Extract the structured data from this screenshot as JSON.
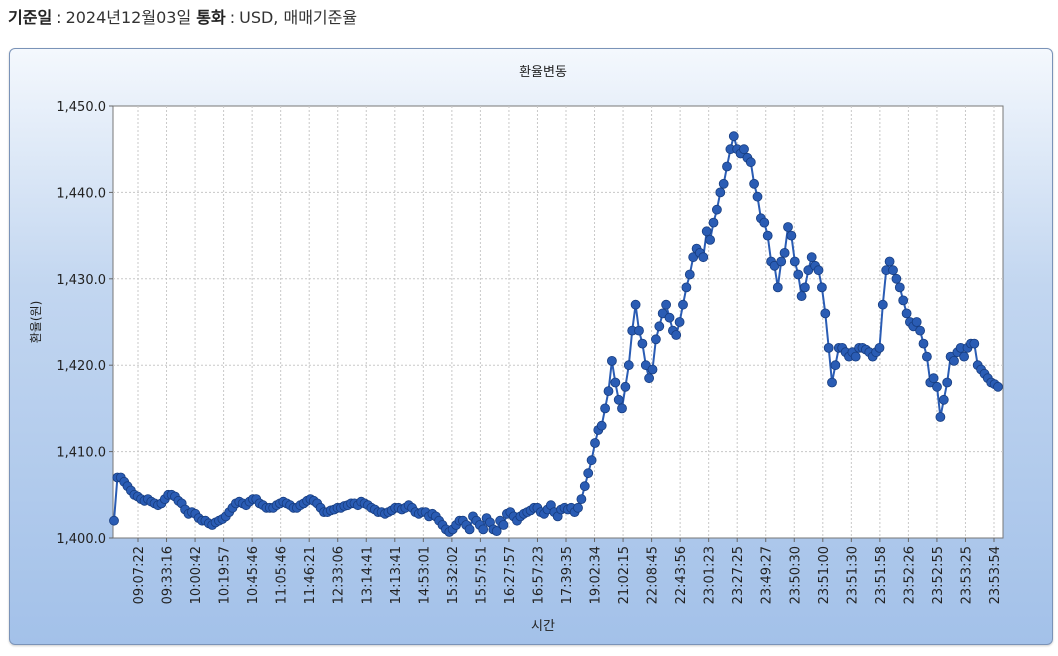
{
  "info": {
    "date_key": "기준일",
    "date_value": "2024년12월03일",
    "currency_key": "통화",
    "currency_value": "USD, 매매기준율"
  },
  "chart_data": {
    "type": "line",
    "title": "환율변동",
    "xlabel": "시간",
    "ylabel": "환율(원)",
    "ylim": [
      1400.0,
      1450.0
    ],
    "yticks": [
      "1,400.0",
      "1,410.0",
      "1,420.0",
      "1,430.0",
      "1,440.0",
      "1,450.0"
    ],
    "xticks": [
      "09:07:22",
      "09:33:16",
      "10:00:42",
      "10:19:57",
      "10:45:46",
      "11:05:46",
      "11:46:21",
      "12:33:06",
      "13:14:41",
      "14:13:41",
      "14:53:01",
      "15:32:02",
      "15:57:51",
      "16:27:57",
      "16:57:23",
      "17:39:35",
      "19:02:34",
      "21:02:15",
      "22:08:45",
      "22:43:56",
      "23:01:23",
      "23:27:25",
      "23:49:27",
      "23:50:30",
      "23:51:00",
      "23:51:30",
      "23:51:58",
      "23:52:26",
      "23:52:55",
      "23:53:25",
      "23:53:54"
    ],
    "grid": true,
    "series_color": "#2a5cb4",
    "series": [
      {
        "values": [
          1402.0,
          1407.0,
          1407.0,
          1406.5,
          1406.0,
          1405.5,
          1405.0,
          1404.8,
          1404.5,
          1404.3,
          1404.5,
          1404.2,
          1404.0,
          1403.8,
          1404.0,
          1404.5,
          1405.0,
          1405.0,
          1404.8,
          1404.3,
          1404.0,
          1403.3,
          1402.8,
          1403.0,
          1402.8,
          1402.3,
          1402.0,
          1402.0,
          1401.7,
          1401.5,
          1401.8,
          1402.0,
          1402.2,
          1402.5,
          1403.0,
          1403.5,
          1404.0,
          1404.2,
          1404.0,
          1403.8,
          1404.2,
          1404.5,
          1404.5,
          1404.0,
          1403.8,
          1403.5,
          1403.5,
          1403.5,
          1403.8,
          1404.0,
          1404.2,
          1404.0,
          1403.8,
          1403.5,
          1403.5,
          1403.8,
          1404.0,
          1404.3,
          1404.5,
          1404.3,
          1404.0,
          1403.5,
          1403.0,
          1403.0,
          1403.2,
          1403.3,
          1403.5,
          1403.5,
          1403.7,
          1403.8,
          1404.0,
          1404.0,
          1403.8,
          1404.2,
          1404.0,
          1403.8,
          1403.5,
          1403.3,
          1403.0,
          1403.0,
          1402.8,
          1403.0,
          1403.2,
          1403.5,
          1403.5,
          1403.3,
          1403.5,
          1403.8,
          1403.5,
          1403.0,
          1402.8,
          1403.0,
          1403.0,
          1402.5,
          1402.8,
          1402.5,
          1402.0,
          1401.5,
          1401.0,
          1400.7,
          1401.0,
          1401.5,
          1402.0,
          1402.0,
          1401.5,
          1401.0,
          1402.5,
          1402.0,
          1401.5,
          1401.0,
          1402.3,
          1401.8,
          1401.0,
          1400.8,
          1402.0,
          1401.5,
          1402.8,
          1403.0,
          1402.5,
          1402.0,
          1402.5,
          1402.8,
          1403.0,
          1403.2,
          1403.5,
          1403.5,
          1403.0,
          1402.8,
          1403.3,
          1403.8,
          1403.0,
          1402.5,
          1403.3,
          1403.5,
          1403.3,
          1403.5,
          1403.0,
          1403.5,
          1404.5,
          1406.0,
          1407.5,
          1409.0,
          1411.0,
          1412.5,
          1413.0,
          1415.0,
          1417.0,
          1420.5,
          1418.0,
          1416.0,
          1415.0,
          1417.5,
          1420.0,
          1424.0,
          1427.0,
          1424.0,
          1422.5,
          1420.0,
          1418.5,
          1419.5,
          1423.0,
          1424.5,
          1426.0,
          1427.0,
          1425.5,
          1424.0,
          1423.5,
          1425.0,
          1427.0,
          1429.0,
          1430.5,
          1432.5,
          1433.5,
          1433.0,
          1432.5,
          1435.5,
          1434.5,
          1436.5,
          1438.0,
          1440.0,
          1441.0,
          1443.0,
          1445.0,
          1446.5,
          1445.0,
          1444.5,
          1445.0,
          1444.0,
          1443.5,
          1441.0,
          1439.5,
          1437.0,
          1436.5,
          1435.0,
          1432.0,
          1431.5,
          1429.0,
          1432.0,
          1433.0,
          1436.0,
          1435.0,
          1432.0,
          1430.5,
          1428.0,
          1429.0,
          1431.0,
          1432.5,
          1431.5,
          1431.0,
          1429.0,
          1426.0,
          1422.0,
          1418.0,
          1420.0,
          1422.0,
          1422.0,
          1421.5,
          1421.0,
          1421.5,
          1421.0,
          1422.0,
          1422.0,
          1421.8,
          1421.5,
          1421.0,
          1421.5,
          1422.0,
          1427.0,
          1431.0,
          1432.0,
          1431.0,
          1430.0,
          1429.0,
          1427.5,
          1426.0,
          1425.0,
          1424.5,
          1425.0,
          1424.0,
          1422.5,
          1421.0,
          1418.0,
          1418.5,
          1417.5,
          1414.0,
          1416.0,
          1418.0,
          1421.0,
          1420.5,
          1421.5,
          1422.0,
          1421.0,
          1422.0,
          1422.5,
          1422.5,
          1420.0,
          1419.5,
          1419.0,
          1418.5,
          1418.0,
          1417.8,
          1417.5
        ]
      }
    ]
  }
}
